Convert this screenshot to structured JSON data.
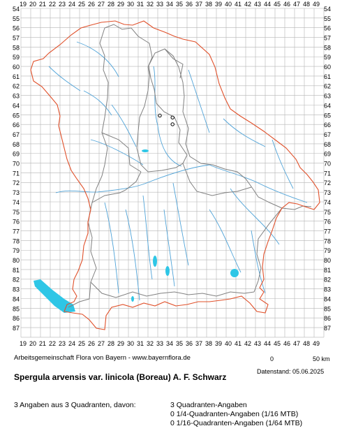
{
  "map": {
    "x_labels": [
      "19",
      "20",
      "21",
      "22",
      "23",
      "24",
      "25",
      "26",
      "27",
      "28",
      "29",
      "30",
      "31",
      "32",
      "33",
      "34",
      "35",
      "36",
      "37",
      "38",
      "39",
      "40",
      "41",
      "42",
      "43",
      "44",
      "45",
      "46",
      "47",
      "48",
      "49"
    ],
    "y_labels": [
      "54",
      "55",
      "56",
      "57",
      "58",
      "59",
      "60",
      "61",
      "62",
      "63",
      "64",
      "65",
      "66",
      "67",
      "68",
      "69",
      "70",
      "71",
      "72",
      "73",
      "74",
      "75",
      "76",
      "77",
      "78",
      "79",
      "80",
      "81",
      "82",
      "83",
      "84",
      "85",
      "86",
      "87"
    ],
    "colors": {
      "grid": "#b5b5b5",
      "state_border": "#e0502a",
      "district_border": "#808080",
      "rivers": "#4fa3d8",
      "lakes": "#2ec6e6",
      "records": "#000000"
    },
    "records": [
      {
        "col": 33,
        "row": 64.8
      },
      {
        "col": 34.3,
        "row": 65.0
      },
      {
        "col": 34.3,
        "row": 65.7
      }
    ]
  },
  "credit": "Arbeitsgemeinschaft Flora von Bayern - www.bayernflora.de",
  "scale": {
    "start": "0",
    "end": "50 km"
  },
  "stand": "Datenstand: 05.06.2025",
  "title": "Spergula arvensis var. linicola (Boreau) A. F. Schwarz",
  "stats": {
    "total": "3 Angaben aus 3 Quadranten, davon:",
    "line1": "3 Quadranten-Angaben",
    "line2": "0 1/4-Quadranten-Angaben (1/16 MTB)",
    "line3": "0 1/16-Quadranten-Angaben (1/64 MTB)"
  }
}
